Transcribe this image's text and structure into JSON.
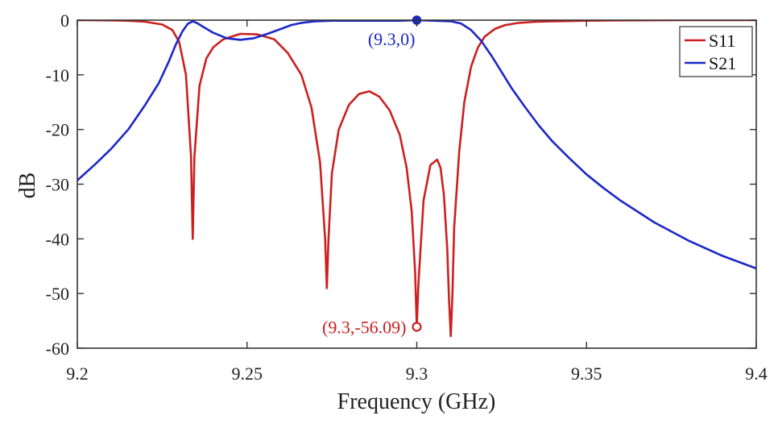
{
  "chart_data": {
    "type": "line",
    "xlabel": "Frequency (GHz)",
    "ylabel": "dB",
    "xlim": [
      9.2,
      9.4
    ],
    "ylim": [
      -60,
      0
    ],
    "xticks": [
      9.2,
      9.25,
      9.3,
      9.35,
      9.4
    ],
    "xtick_labels": [
      "9.2",
      "9.25",
      "9.3",
      "9.35",
      "9.4"
    ],
    "yticks": [
      0,
      -10,
      -20,
      -30,
      -40,
      -50,
      -60
    ],
    "ytick_labels": [
      "0",
      "-10",
      "-20",
      "-30",
      "-40",
      "-50",
      "-60"
    ],
    "grid": false,
    "legend_position": "top-right",
    "series": [
      {
        "name": "S11",
        "color": "#cc2020",
        "x": [
          9.2,
          9.21,
          9.215,
          9.22,
          9.225,
          9.228,
          9.23,
          9.232,
          9.2335,
          9.234,
          9.2345,
          9.236,
          9.238,
          9.24,
          9.243,
          9.248,
          9.253,
          9.258,
          9.262,
          9.266,
          9.269,
          9.2715,
          9.273,
          9.2735,
          9.274,
          9.275,
          9.277,
          9.28,
          9.283,
          9.286,
          9.289,
          9.292,
          9.295,
          9.297,
          9.2985,
          9.2995,
          9.3,
          9.3005,
          9.302,
          9.304,
          9.306,
          9.307,
          9.308,
          9.309,
          9.3095,
          9.31,
          9.3105,
          9.311,
          9.3125,
          9.314,
          9.316,
          9.318,
          9.32,
          9.323,
          9.326,
          9.33,
          9.335,
          9.34,
          9.35,
          9.36,
          9.38,
          9.4
        ],
        "y": [
          0,
          -0.05,
          -0.1,
          -0.3,
          -0.8,
          -1.8,
          -4,
          -10,
          -25,
          -40,
          -25,
          -12,
          -7,
          -5,
          -3.5,
          -2.5,
          -2.6,
          -3.5,
          -6,
          -10,
          -16,
          -26,
          -40,
          -49,
          -40,
          -28,
          -20,
          -15.5,
          -13.5,
          -13,
          -14,
          -16.5,
          -21,
          -27,
          -35,
          -46,
          -56.09,
          -48,
          -33,
          -26.5,
          -25.5,
          -27,
          -32,
          -42,
          -51,
          -57.8,
          -50,
          -38,
          -24,
          -15,
          -8.5,
          -5,
          -3,
          -1.6,
          -0.9,
          -0.5,
          -0.3,
          -0.2,
          -0.1,
          -0.05,
          0,
          0
        ]
      },
      {
        "name": "S21",
        "color": "#1c27c8",
        "x": [
          9.2,
          9.205,
          9.21,
          9.215,
          9.22,
          9.224,
          9.227,
          9.229,
          9.231,
          9.2325,
          9.234,
          9.2355,
          9.237,
          9.24,
          9.244,
          9.248,
          9.252,
          9.256,
          9.26,
          9.263,
          9.266,
          9.27,
          9.275,
          9.28,
          9.285,
          9.29,
          9.295,
          9.3,
          9.305,
          9.31,
          9.313,
          9.316,
          9.319,
          9.322,
          9.325,
          9.328,
          9.332,
          9.336,
          9.34,
          9.345,
          9.35,
          9.355,
          9.36,
          9.37,
          9.38,
          9.39,
          9.4
        ],
        "y": [
          -29.3,
          -26.5,
          -23.5,
          -20,
          -15.5,
          -11.5,
          -7.5,
          -4.5,
          -2,
          -0.7,
          -0.2,
          -0.6,
          -1.2,
          -2.3,
          -3.3,
          -3.6,
          -3.3,
          -2.5,
          -1.6,
          -0.9,
          -0.5,
          -0.2,
          -0.1,
          -0.1,
          -0.1,
          -0.1,
          -0.1,
          0,
          -0.1,
          -0.2,
          -0.6,
          -1.8,
          -3.8,
          -6.5,
          -9.5,
          -12.5,
          -16,
          -19.3,
          -22.2,
          -25.3,
          -28.2,
          -30.7,
          -33,
          -37,
          -40.3,
          -43.1,
          -45.4
        ]
      }
    ],
    "annotations": [
      {
        "label": "(9.3,0)",
        "x": 9.3,
        "y": 0,
        "series": "S21",
        "color": "#1c27c8"
      },
      {
        "label": "(9.3,-56.09)",
        "x": 9.3,
        "y": -56.09,
        "series": "S11",
        "color": "#cc2020"
      }
    ]
  }
}
